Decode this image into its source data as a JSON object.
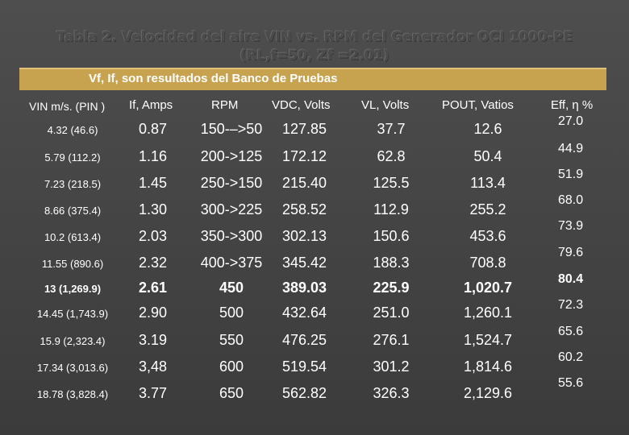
{
  "title": {
    "line1": "Tabla 2. Velocidad del aire VIN vs. RPM del Generador OCI 1000-PE",
    "line2": "(RL,f=50, Zf =2.01)"
  },
  "banner": "Vf, If, son resultados del Banco de Pruebas",
  "headers": [
    "VIN m/s. (PIN )",
    "If, Amps",
    "RPM",
    "VDC, Volts",
    "VL, Volts",
    "POUT, Vatios"
  ],
  "eff_header": "Eff, η %",
  "rows": [
    {
      "vin": "4.32 (46.6)",
      "if": "0.87",
      "rpm": "150-–>50",
      "vdc": "127.85",
      "vl": "37.7",
      "pout": "12.6"
    },
    {
      "vin": "5.79 (112.2)",
      "if": "1.16",
      "rpm": "200->125",
      "vdc": "172.12",
      "vl": "62.8",
      "pout": "50.4"
    },
    {
      "vin": "7.23 (218.5)",
      "if": "1.45",
      "rpm": "250->150",
      "vdc": "215.40",
      "vl": "125.5",
      "pout": "113.4"
    },
    {
      "vin": "8.66 (375.4)",
      "if": "1.30",
      "rpm": "300->225",
      "vdc": "258.52",
      "vl": "112.9",
      "pout": "255.2"
    },
    {
      "vin": "10.2 (613.4)",
      "if": "2.03",
      "rpm": "350->300",
      "vdc": "302.13",
      "vl": "150.6",
      "pout": "453.6"
    },
    {
      "vin": "11.55 (890.6)",
      "if": "2.32",
      "rpm": "400->375",
      "vdc": "345.42",
      "vl": "188.3",
      "pout": "708.8"
    },
    {
      "vin": "13 (1,269.9)",
      "if": "2.61",
      "rpm": "450",
      "vdc": "389.03",
      "vl": "225.9",
      "pout": "1,020.7"
    },
    {
      "vin": "14.45 (1,743.9)",
      "if": "2.90",
      "rpm": "500",
      "vdc": "432.64",
      "vl": "251.0",
      "pout": "1,260.1"
    },
    {
      "vin": "15.9 (2,323.4)",
      "if": "3.19",
      "rpm": "550",
      "vdc": "476.25",
      "vl": "276.1",
      "pout": "1,524.7"
    },
    {
      "vin": "17.34 (3,013.6)",
      "if": "3,48",
      "rpm": "600",
      "vdc": "519.54",
      "vl": "301.2",
      "pout": "1,814.6"
    },
    {
      "vin": "18.78 (3,828.4)",
      "if": "3.77",
      "rpm": "650",
      "vdc": "562.82",
      "vl": "326.3",
      "pout": "2,129.6"
    }
  ],
  "eff": [
    "27.0",
    "44.9",
    "51.9",
    "68.0",
    "73.9",
    "79.6",
    "80.4",
    "72.3",
    "65.6",
    "60.2",
    "55.6"
  ]
}
